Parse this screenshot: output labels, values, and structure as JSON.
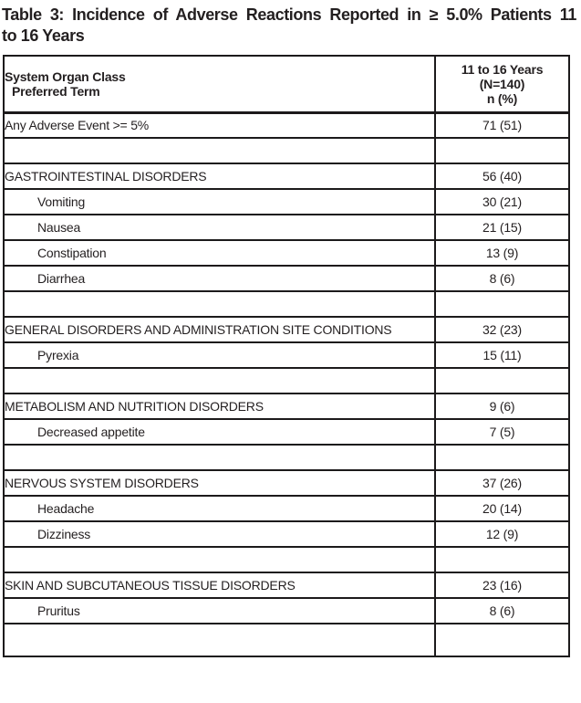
{
  "title": {
    "line1": "Table 3: Incidence of Adverse Reactions Reported in ≥ 5.0% Patients 11",
    "line2": "to 16 Years"
  },
  "table": {
    "header": {
      "col1_line1": "System Organ Class",
      "col1_line2": "Preferred Term",
      "col2_line1": "11 to 16 Years",
      "col2_line2": "(N=140)",
      "col2_line3": "n (%)"
    },
    "rows": [
      {
        "type": "event",
        "label": "Any Adverse Event >= 5%",
        "value": "71 (51)"
      },
      {
        "type": "spacer",
        "label": "",
        "value": ""
      },
      {
        "type": "soc",
        "label": "GASTROINTESTINAL DISORDERS",
        "value": "56 (40)"
      },
      {
        "type": "term",
        "label": "Vomiting",
        "value": "30 (21)"
      },
      {
        "type": "term",
        "label": "Nausea",
        "value": "21 (15)"
      },
      {
        "type": "term",
        "label": "Constipation",
        "value": "13 (9)"
      },
      {
        "type": "term",
        "label": "Diarrhea",
        "value": "8 (6)"
      },
      {
        "type": "spacer",
        "label": "",
        "value": ""
      },
      {
        "type": "soc",
        "label": "GENERAL DISORDERS AND ADMINISTRATION SITE CONDITIONS",
        "value": "32 (23)"
      },
      {
        "type": "term",
        "label": "Pyrexia",
        "value": "15 (11)"
      },
      {
        "type": "spacer",
        "label": "",
        "value": ""
      },
      {
        "type": "soc",
        "label": "METABOLISM AND NUTRITION DISORDERS",
        "value": "9 (6)"
      },
      {
        "type": "term",
        "label": "Decreased appetite",
        "value": "7 (5)"
      },
      {
        "type": "spacer",
        "label": "",
        "value": ""
      },
      {
        "type": "soc",
        "label": "NERVOUS SYSTEM DISORDERS",
        "value": "37 (26)"
      },
      {
        "type": "term",
        "label": "Headache",
        "value": "20 (14)"
      },
      {
        "type": "term",
        "label": "Dizziness",
        "value": "12 (9)"
      },
      {
        "type": "spacer",
        "label": "",
        "value": ""
      },
      {
        "type": "soc",
        "label": "SKIN AND SUBCUTANEOUS TISSUE DISORDERS",
        "value": "23 (16)"
      },
      {
        "type": "term",
        "label": "Pruritus",
        "value": "8 (6)"
      },
      {
        "type": "spacer",
        "label": "",
        "value": ""
      }
    ]
  },
  "colors": {
    "text": "#231f20",
    "border": "#1c1a1b",
    "background": "#ffffff"
  }
}
